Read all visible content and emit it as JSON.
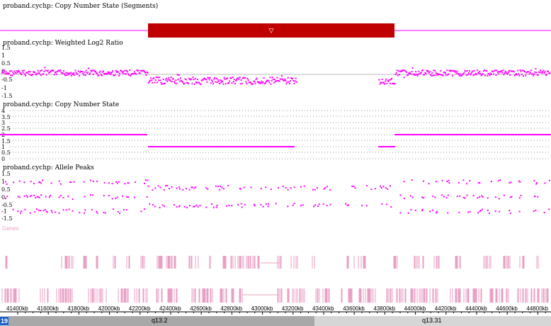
{
  "tracks": {
    "segments": {
      "title": "proband.cychp: Copy Number State (Segments)",
      "marker": "▽",
      "segment_color": "#c00000"
    },
    "log2": {
      "title": "proband.cychp: Weighted Log2 Ratio",
      "ylabels": [
        "1.5",
        "1",
        "0.5",
        "0",
        "-0.5",
        "-1",
        "-1.5"
      ]
    },
    "cn_state": {
      "title": "proband.cychp: Copy Number State",
      "ylabels": [
        "4",
        "3.5",
        "3",
        "2.5",
        "2",
        "1.5",
        "1",
        "0.5",
        "0"
      ]
    },
    "allele": {
      "title": "proband.cychp: Allele Peaks",
      "ylabels": [
        "1.5",
        "1",
        "0.5",
        "0",
        "-0.5",
        "-1",
        "-1.5"
      ]
    },
    "genes": {
      "label": "Genes"
    }
  },
  "colors": {
    "data": "#ff00ff",
    "genes": "#e8a0c4",
    "band_dark": "#a8a8a8",
    "band_light": "#d6d6d6",
    "chrom": "#1a5fc4"
  },
  "axis": {
    "ticks": [
      "41400kb",
      "41600kb",
      "41800kb",
      "42000kb",
      "42200kb",
      "42400kb",
      "42600kb",
      "42800kb",
      "43000kb",
      "43200kb",
      "43400kb",
      "43600kb",
      "43800kb",
      "44000kb",
      "44200kb",
      "44400kb",
      "44600kb",
      "44800kb"
    ]
  },
  "chromosome": {
    "number": "19",
    "bands": [
      {
        "name": "q13.2"
      },
      {
        "name": "q13.31"
      }
    ]
  }
}
